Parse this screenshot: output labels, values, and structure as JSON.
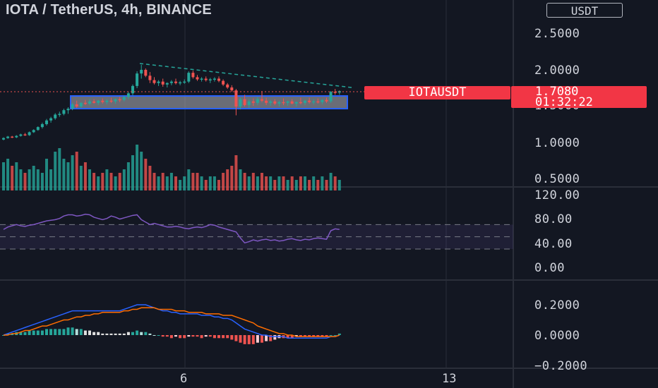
{
  "header": {
    "title": "IOTA / TetherUS, 4h, BINANCE",
    "currency_button": "USDT"
  },
  "price_axis": {
    "labels": [
      "2.5000",
      "2.0000",
      "1.5000",
      "1.0000",
      "0.5000"
    ]
  },
  "rsi_axis": {
    "labels": [
      "120.00",
      "80.00",
      "40.00",
      "0.00"
    ]
  },
  "macd_axis": {
    "labels": [
      "0.2000",
      "0.0000",
      "−0.2000"
    ]
  },
  "time_axis": {
    "labels": [
      "6",
      "13"
    ]
  },
  "last_price": {
    "symbol": "IOTAUSDT",
    "value": "1.7080",
    "countdown": "01:32:22"
  },
  "colors": {
    "background": "#131722",
    "up": "#26a69a",
    "down": "#ef5350",
    "rsi_line": "#7e57c2",
    "macd_line": "#2962ff",
    "signal_line": "#ff6d00",
    "price_tag": "#f23645",
    "zone_border": "#2962ff"
  },
  "chart_data": {
    "type": "candlestick",
    "panes": [
      "price",
      "rsi",
      "macd"
    ],
    "price_ylim": [
      0.3,
      2.75
    ],
    "candles": [
      [
        1.05,
        1.08,
        1.04,
        1.07
      ],
      [
        1.07,
        1.1,
        1.06,
        1.09
      ],
      [
        1.09,
        1.1,
        1.07,
        1.08
      ],
      [
        1.08,
        1.11,
        1.07,
        1.1
      ],
      [
        1.1,
        1.13,
        1.09,
        1.12
      ],
      [
        1.12,
        1.14,
        1.1,
        1.11
      ],
      [
        1.11,
        1.16,
        1.1,
        1.15
      ],
      [
        1.15,
        1.19,
        1.14,
        1.18
      ],
      [
        1.18,
        1.23,
        1.17,
        1.22
      ],
      [
        1.22,
        1.28,
        1.2,
        1.26
      ],
      [
        1.26,
        1.33,
        1.24,
        1.31
      ],
      [
        1.31,
        1.36,
        1.28,
        1.34
      ],
      [
        1.34,
        1.41,
        1.32,
        1.39
      ],
      [
        1.39,
        1.43,
        1.36,
        1.4
      ],
      [
        1.4,
        1.47,
        1.38,
        1.45
      ],
      [
        1.45,
        1.49,
        1.4,
        1.47
      ],
      [
        1.47,
        1.55,
        1.45,
        1.53
      ],
      [
        1.53,
        1.58,
        1.48,
        1.5
      ],
      [
        1.5,
        1.56,
        1.48,
        1.55
      ],
      [
        1.55,
        1.59,
        1.52,
        1.54
      ],
      [
        1.54,
        1.6,
        1.52,
        1.57
      ],
      [
        1.57,
        1.6,
        1.54,
        1.55
      ],
      [
        1.55,
        1.59,
        1.52,
        1.58
      ],
      [
        1.58,
        1.61,
        1.54,
        1.56
      ],
      [
        1.56,
        1.6,
        1.53,
        1.58
      ],
      [
        1.58,
        1.62,
        1.55,
        1.57
      ],
      [
        1.57,
        1.61,
        1.54,
        1.6
      ],
      [
        1.6,
        1.63,
        1.56,
        1.59
      ],
      [
        1.59,
        1.65,
        1.57,
        1.63
      ],
      [
        1.63,
        1.7,
        1.6,
        1.68
      ],
      [
        1.68,
        1.8,
        1.65,
        1.78
      ],
      [
        1.78,
        1.98,
        1.75,
        1.95
      ],
      [
        1.95,
        2.07,
        1.88,
        2.0
      ],
      [
        2.0,
        2.02,
        1.9,
        1.92
      ],
      [
        1.92,
        1.97,
        1.82,
        1.86
      ],
      [
        1.86,
        1.9,
        1.8,
        1.82
      ],
      [
        1.82,
        1.86,
        1.78,
        1.84
      ],
      [
        1.84,
        1.88,
        1.77,
        1.8
      ],
      [
        1.8,
        1.83,
        1.76,
        1.82
      ],
      [
        1.82,
        1.86,
        1.79,
        1.84
      ],
      [
        1.84,
        1.88,
        1.8,
        1.82
      ],
      [
        1.82,
        1.85,
        1.79,
        1.83
      ],
      [
        1.83,
        1.87,
        1.81,
        1.84
      ],
      [
        1.84,
        1.98,
        1.82,
        1.96
      ],
      [
        1.96,
        1.99,
        1.88,
        1.9
      ],
      [
        1.9,
        1.93,
        1.85,
        1.87
      ],
      [
        1.87,
        1.9,
        1.84,
        1.88
      ],
      [
        1.88,
        1.91,
        1.84,
        1.86
      ],
      [
        1.86,
        1.89,
        1.82,
        1.87
      ],
      [
        1.87,
        1.9,
        1.84,
        1.88
      ],
      [
        1.88,
        1.91,
        1.83,
        1.85
      ],
      [
        1.85,
        1.87,
        1.78,
        1.8
      ],
      [
        1.8,
        1.82,
        1.74,
        1.76
      ],
      [
        1.76,
        1.79,
        1.7,
        1.72
      ],
      [
        1.72,
        1.74,
        1.38,
        1.5
      ],
      [
        1.5,
        1.62,
        1.46,
        1.6
      ],
      [
        1.6,
        1.66,
        1.5,
        1.52
      ],
      [
        1.52,
        1.6,
        1.48,
        1.57
      ],
      [
        1.57,
        1.61,
        1.51,
        1.55
      ],
      [
        1.55,
        1.63,
        1.52,
        1.6
      ],
      [
        1.6,
        1.71,
        1.56,
        1.58
      ],
      [
        1.58,
        1.62,
        1.52,
        1.55
      ],
      [
        1.55,
        1.59,
        1.51,
        1.57
      ],
      [
        1.57,
        1.6,
        1.52,
        1.54
      ],
      [
        1.54,
        1.58,
        1.5,
        1.56
      ],
      [
        1.56,
        1.61,
        1.52,
        1.55
      ],
      [
        1.55,
        1.58,
        1.51,
        1.57
      ],
      [
        1.57,
        1.6,
        1.53,
        1.54
      ],
      [
        1.54,
        1.57,
        1.5,
        1.56
      ],
      [
        1.56,
        1.62,
        1.53,
        1.55
      ],
      [
        1.55,
        1.59,
        1.52,
        1.58
      ],
      [
        1.58,
        1.62,
        1.54,
        1.56
      ],
      [
        1.56,
        1.6,
        1.53,
        1.57
      ],
      [
        1.57,
        1.61,
        1.54,
        1.56
      ],
      [
        1.56,
        1.6,
        1.53,
        1.59
      ],
      [
        1.59,
        1.62,
        1.55,
        1.57
      ],
      [
        1.57,
        1.71,
        1.55,
        1.7
      ],
      [
        1.7,
        1.74,
        1.66,
        1.69
      ],
      [
        1.69,
        1.72,
        1.66,
        1.71
      ]
    ],
    "volume": [
      0.08,
      0.09,
      0.07,
      0.08,
      0.06,
      0.05,
      0.06,
      0.07,
      0.06,
      0.05,
      0.09,
      0.06,
      0.11,
      0.12,
      0.09,
      0.08,
      0.1,
      0.11,
      0.07,
      0.08,
      0.06,
      0.05,
      0.04,
      0.05,
      0.06,
      0.05,
      0.04,
      0.05,
      0.06,
      0.08,
      0.1,
      0.13,
      0.11,
      0.09,
      0.07,
      0.05,
      0.04,
      0.05,
      0.04,
      0.05,
      0.04,
      0.03,
      0.04,
      0.06,
      0.05,
      0.05,
      0.04,
      0.03,
      0.04,
      0.04,
      0.03,
      0.05,
      0.06,
      0.07,
      0.1,
      0.06,
      0.05,
      0.04,
      0.05,
      0.04,
      0.05,
      0.04,
      0.04,
      0.03,
      0.04,
      0.04,
      0.03,
      0.04,
      0.03,
      0.04,
      0.04,
      0.03,
      0.04,
      0.03,
      0.04,
      0.03,
      0.05,
      0.04,
      0.03
    ],
    "rsi": [
      62,
      66,
      68,
      70,
      68,
      67,
      69,
      70,
      72,
      74,
      76,
      77,
      78,
      80,
      84,
      86,
      86,
      84,
      85,
      87,
      86,
      82,
      80,
      78,
      80,
      84,
      82,
      79,
      81,
      83,
      85,
      86,
      78,
      74,
      70,
      72,
      70,
      68,
      66,
      66,
      67,
      66,
      64,
      63,
      65,
      66,
      65,
      67,
      70,
      69,
      66,
      64,
      62,
      60,
      58,
      48,
      40,
      42,
      45,
      43,
      45,
      46,
      44,
      45,
      43,
      44,
      46,
      47,
      45,
      44,
      46,
      45,
      47,
      48,
      47,
      46,
      60,
      63,
      62
    ],
    "macd_line": [
      0.0,
      0.01,
      0.02,
      0.03,
      0.04,
      0.05,
      0.06,
      0.07,
      0.08,
      0.09,
      0.1,
      0.11,
      0.12,
      0.13,
      0.14,
      0.15,
      0.16,
      0.16,
      0.16,
      0.16,
      0.16,
      0.16,
      0.16,
      0.16,
      0.16,
      0.16,
      0.16,
      0.16,
      0.17,
      0.18,
      0.19,
      0.2,
      0.2,
      0.2,
      0.19,
      0.18,
      0.17,
      0.16,
      0.16,
      0.15,
      0.15,
      0.14,
      0.14,
      0.14,
      0.14,
      0.14,
      0.13,
      0.13,
      0.13,
      0.12,
      0.12,
      0.11,
      0.11,
      0.1,
      0.08,
      0.06,
      0.04,
      0.03,
      0.02,
      0.01,
      0.0,
      0.0,
      -0.01,
      -0.01,
      -0.01,
      -0.01,
      -0.02,
      -0.02,
      -0.02,
      -0.02,
      -0.02,
      -0.02,
      -0.02,
      -0.02,
      -0.02,
      -0.02,
      -0.01,
      -0.01,
      0.0
    ],
    "signal_line": [
      0.0,
      0.0,
      0.01,
      0.01,
      0.02,
      0.03,
      0.03,
      0.04,
      0.05,
      0.06,
      0.06,
      0.07,
      0.08,
      0.09,
      0.1,
      0.1,
      0.11,
      0.12,
      0.12,
      0.13,
      0.13,
      0.14,
      0.14,
      0.15,
      0.15,
      0.15,
      0.15,
      0.15,
      0.16,
      0.16,
      0.17,
      0.17,
      0.18,
      0.18,
      0.18,
      0.18,
      0.17,
      0.17,
      0.17,
      0.17,
      0.16,
      0.16,
      0.16,
      0.15,
      0.15,
      0.15,
      0.15,
      0.14,
      0.14,
      0.14,
      0.14,
      0.13,
      0.13,
      0.13,
      0.12,
      0.11,
      0.1,
      0.09,
      0.08,
      0.06,
      0.05,
      0.04,
      0.03,
      0.02,
      0.01,
      0.01,
      0.0,
      0.0,
      -0.01,
      -0.01,
      -0.01,
      -0.01,
      -0.01,
      -0.01,
      -0.01,
      -0.01,
      -0.01,
      -0.01,
      0.0
    ],
    "macd_hist": [
      0.0,
      0.01,
      0.01,
      0.02,
      0.02,
      0.02,
      0.03,
      0.03,
      0.03,
      0.03,
      0.04,
      0.04,
      0.04,
      0.04,
      0.04,
      0.05,
      0.05,
      0.04,
      0.04,
      0.03,
      0.03,
      0.02,
      0.02,
      0.01,
      0.01,
      0.01,
      0.01,
      0.01,
      0.01,
      0.02,
      0.02,
      0.03,
      0.02,
      0.02,
      0.01,
      0.0,
      0.0,
      -0.01,
      -0.01,
      -0.02,
      -0.01,
      -0.02,
      -0.02,
      -0.01,
      -0.01,
      -0.01,
      -0.02,
      -0.01,
      -0.01,
      -0.02,
      -0.02,
      -0.02,
      -0.02,
      -0.03,
      -0.04,
      -0.05,
      -0.06,
      -0.06,
      -0.06,
      -0.05,
      -0.05,
      -0.04,
      -0.04,
      -0.03,
      -0.02,
      -0.02,
      -0.02,
      -0.02,
      -0.01,
      -0.01,
      -0.01,
      -0.01,
      -0.01,
      -0.01,
      -0.01,
      -0.01,
      0.0,
      0.0,
      0.01
    ]
  }
}
